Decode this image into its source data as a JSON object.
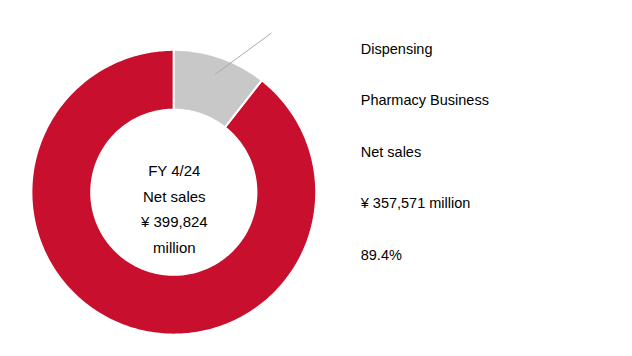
{
  "chart_data": {
    "type": "pie",
    "values": [
      89.4,
      10.6
    ],
    "colors": [
      "#c8102e",
      "#c8c8c8"
    ],
    "center_label": [
      "FY 4/24",
      "Net sales",
      "¥ 399,824",
      "million"
    ],
    "annotation": [
      "Dispensing",
      "Pharmacy Business",
      "Net sales",
      "¥ 357,571 million",
      "89.4%"
    ],
    "tick_labels": false
  }
}
